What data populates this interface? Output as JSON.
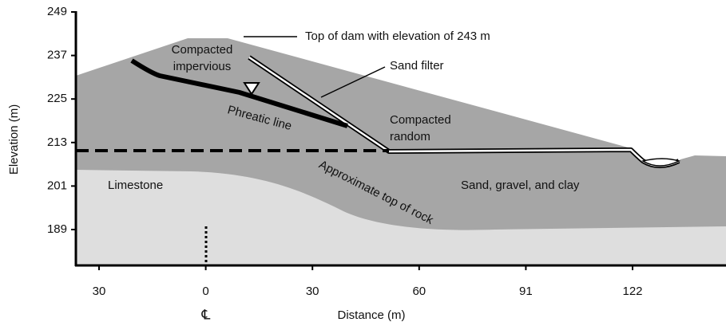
{
  "y_axis": {
    "label": "Elevation (m)",
    "ticks": [
      "249",
      "237",
      "225",
      "213",
      "201",
      "189"
    ]
  },
  "x_axis": {
    "label": "Distance (m)",
    "ticks": [
      "30",
      "0",
      "30",
      "60",
      "91",
      "122"
    ]
  },
  "centerline": "℄",
  "labels": {
    "top_of_dam": "Top of dam with elevation of 243 m",
    "sand_filter": "Sand filter",
    "compacted_impervious": [
      "Compacted",
      "impervious"
    ],
    "phreatic_line": "Phreatic line",
    "compacted_random": [
      "Compacted",
      "random"
    ],
    "limestone": "Limestone",
    "sand_gravel_clay": "Sand, gravel, and clay",
    "top_of_rock": "Approximate top of rock"
  }
}
